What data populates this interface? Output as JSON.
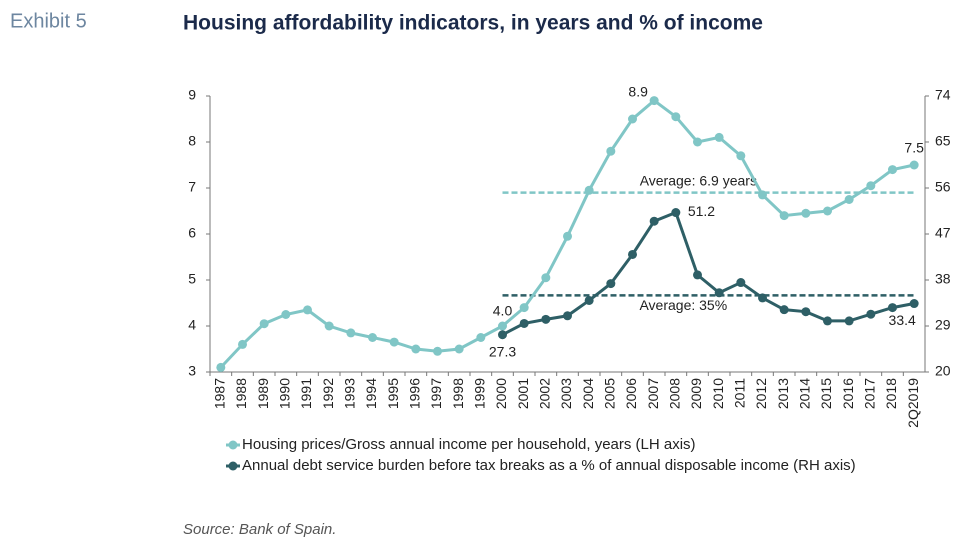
{
  "exhibit": "Exhibit 5",
  "source": "Source: Bank of Spain.",
  "chart_data": {
    "type": "line",
    "title": "Housing affordability indicators, in years and % of income",
    "categories": [
      "1987",
      "1988",
      "1989",
      "1990",
      "1991",
      "1992",
      "1993",
      "1994",
      "1995",
      "1996",
      "1997",
      "1998",
      "1999",
      "2000",
      "2001",
      "2002",
      "2003",
      "2004",
      "2005",
      "2006",
      "2007",
      "2008",
      "2009",
      "2010",
      "2011",
      "2012",
      "2013",
      "2014",
      "2015",
      "2016",
      "2017",
      "2018",
      "2Q2019"
    ],
    "ylim": [
      3,
      9
    ],
    "yticks": [
      3,
      4,
      5,
      6,
      7,
      8,
      9
    ],
    "y2lim": [
      20,
      74
    ],
    "y2ticks": [
      20,
      29,
      38,
      47,
      56,
      65,
      74
    ],
    "series": [
      {
        "name": "Housing prices/Gross annual income per household, years (LH axis)",
        "color": "#80c6c6",
        "values": [
          3.1,
          3.6,
          4.05,
          4.25,
          4.35,
          4.0,
          3.85,
          3.75,
          3.65,
          3.5,
          3.45,
          3.5,
          3.75,
          4.0,
          4.4,
          5.05,
          5.95,
          6.95,
          7.8,
          8.5,
          8.9,
          8.55,
          8.0,
          8.1,
          7.7,
          6.85,
          6.4,
          6.45,
          6.5,
          6.75,
          7.05,
          7.4,
          7.5
        ],
        "value_labels": [
          null,
          null,
          null,
          null,
          null,
          null,
          null,
          null,
          null,
          null,
          null,
          null,
          null,
          "4.0",
          null,
          null,
          null,
          null,
          null,
          null,
          "8.9",
          null,
          null,
          null,
          null,
          null,
          null,
          null,
          null,
          null,
          null,
          null,
          "7.5"
        ]
      },
      {
        "name": "Annual debt service burden before tax breaks as a % of annual disposable income (RH axis)",
        "color": "#2e5f66",
        "axis": "y2",
        "values": [
          null,
          null,
          null,
          null,
          null,
          null,
          null,
          null,
          null,
          null,
          null,
          null,
          null,
          27.3,
          29.5,
          30.3,
          31.0,
          34.0,
          37.3,
          43.0,
          49.5,
          51.2,
          39.0,
          35.5,
          37.5,
          34.5,
          32.2,
          31.8,
          30.0,
          30.0,
          31.3,
          32.6,
          33.4
        ],
        "value_labels": [
          null,
          null,
          null,
          null,
          null,
          null,
          null,
          null,
          null,
          null,
          null,
          null,
          null,
          "27.3",
          null,
          null,
          null,
          null,
          null,
          null,
          null,
          "51.2",
          null,
          null,
          null,
          null,
          null,
          null,
          null,
          null,
          null,
          null,
          "33.4"
        ]
      }
    ],
    "reference_lines": [
      {
        "label": "Average: 6.9 years",
        "value": 6.9,
        "color": "#80c6c6",
        "from": "2000",
        "to": "2Q2019"
      },
      {
        "label": "Average: 35%",
        "value": 35,
        "axis": "y2",
        "color": "#2e5f66",
        "from": "2000",
        "to": "2Q2019"
      }
    ]
  }
}
